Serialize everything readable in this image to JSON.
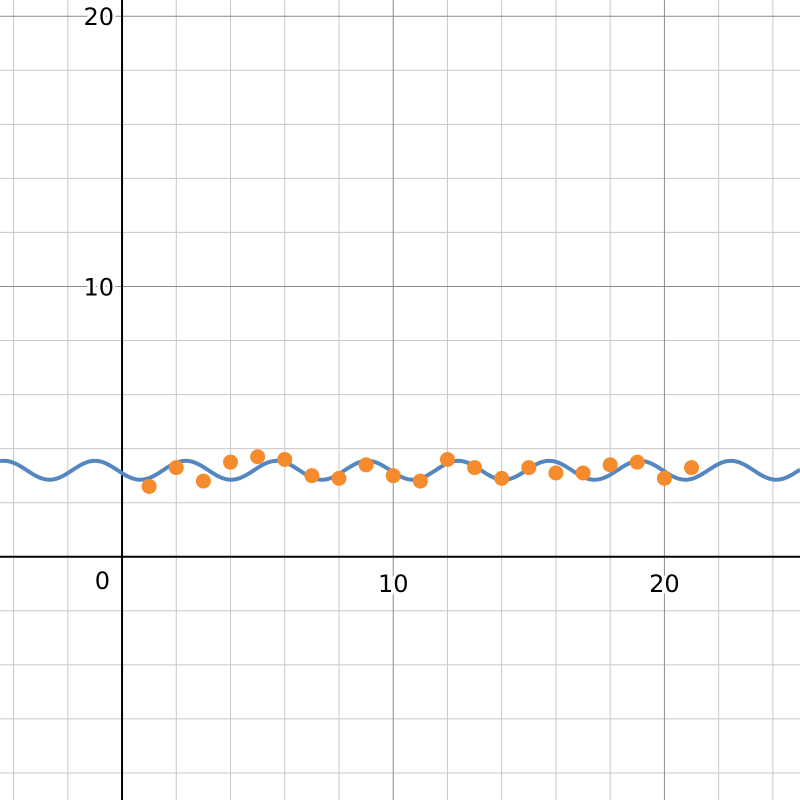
{
  "chart_data": {
    "type": "scatter",
    "xlim": [
      -4.5,
      25
    ],
    "ylim": [
      -9,
      20.6
    ],
    "grid": true,
    "grid_minor_step": 2,
    "grid_major_step": 10,
    "x_ticks": [
      0,
      10,
      20
    ],
    "x_tick_labels": [
      "0",
      "10",
      "20"
    ],
    "y_ticks": [
      10,
      20
    ],
    "y_tick_labels": [
      "10",
      "20"
    ],
    "scatter": {
      "color": "#f58b2c",
      "points": [
        [
          1,
          2.6
        ],
        [
          2,
          3.3
        ],
        [
          3,
          2.8
        ],
        [
          4,
          3.5
        ],
        [
          5,
          3.7
        ],
        [
          6,
          3.6
        ],
        [
          7,
          3.0
        ],
        [
          8,
          2.9
        ],
        [
          9,
          3.4
        ],
        [
          10,
          3.0
        ],
        [
          11,
          2.8
        ],
        [
          12,
          3.6
        ],
        [
          13,
          3.3
        ],
        [
          14,
          2.9
        ],
        [
          15,
          3.3
        ],
        [
          16,
          3.1
        ],
        [
          17,
          3.1
        ],
        [
          18,
          3.4
        ],
        [
          19,
          3.5
        ],
        [
          20,
          2.9
        ],
        [
          21,
          3.3
        ]
      ]
    },
    "curve": {
      "color": "#5487c0",
      "offset": 3.2,
      "amplitude": 0.35,
      "period": 3.35,
      "phase_x": 5.7
    }
  }
}
